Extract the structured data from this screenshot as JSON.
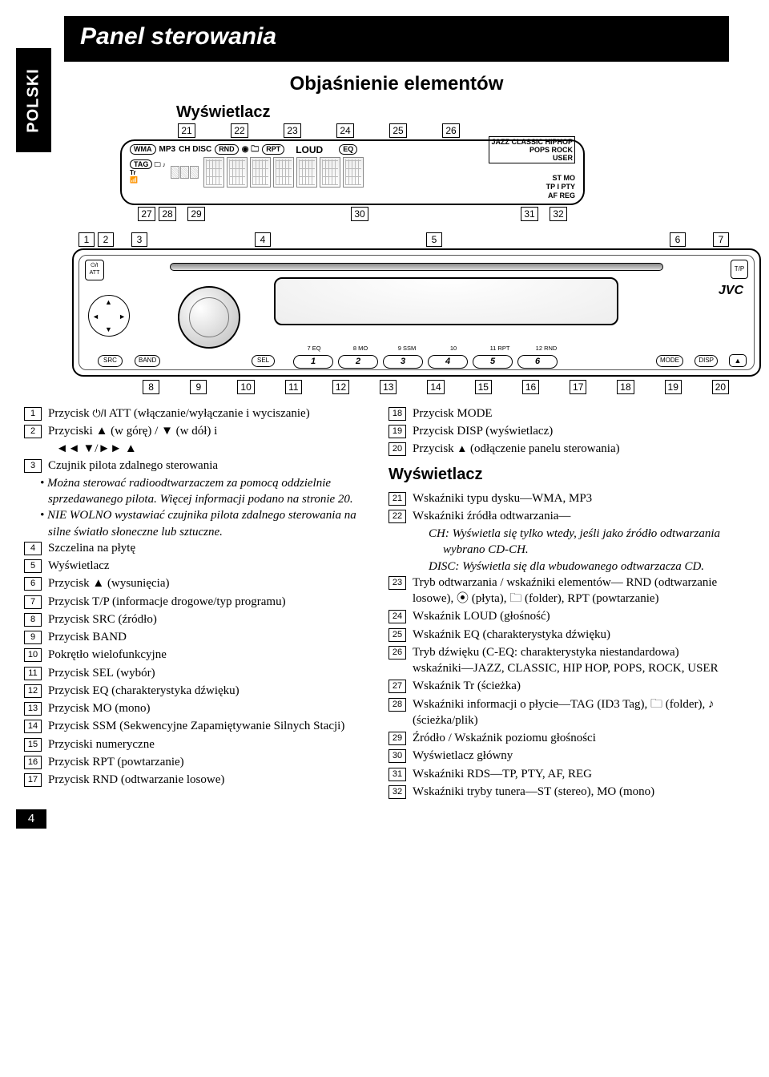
{
  "page_number": "4",
  "side_tab": "POLSKI",
  "title": "Panel sterowania",
  "subtitle": "Objaśnienie elementów",
  "display_label": "Wyświetlacz",
  "lcd": {
    "row1": [
      "WMA",
      "MP3",
      "CH DISC",
      "RND",
      "RPT"
    ],
    "loud": "LOUD",
    "eq": "EQ",
    "right_block": "JAZZ CLASSIC HIPHOP\nPOPS ROCK\nUSER",
    "tag": "TAG",
    "tr": "Tr",
    "stmo": "ST MO",
    "tp": "TP I PTY",
    "afreg": "AF REG"
  },
  "faceplate": {
    "att": "ATT",
    "tp": "T/P",
    "src": "SRC",
    "band": "BAND",
    "sel": "SEL",
    "mode": "MODE",
    "disp": "DISP",
    "jvc": "JVC",
    "num_labels": [
      "7 EQ",
      "8 MO",
      "9 SSM",
      "10",
      "11 RPT",
      "12 RND"
    ]
  },
  "top_callouts": [
    "21",
    "22",
    "23",
    "24",
    "25",
    "26"
  ],
  "bot_callouts_lcd": [
    "27",
    "28",
    "29",
    "30",
    "31",
    "32"
  ],
  "front_top": [
    "1",
    "2",
    "3",
    "4",
    "5",
    "6",
    "7"
  ],
  "front_bot": [
    "8",
    "9",
    "10",
    "11",
    "12",
    "13",
    "14",
    "15",
    "16",
    "17",
    "18",
    "19",
    "20"
  ],
  "left_col": [
    {
      "n": "1",
      "t": "Przycisk  ATT (włączanie/wyłączanie i wyciszanie)",
      "suffix_pre": true
    },
    {
      "n": "2",
      "t": "Przyciski ▲ (w górę) / ▼ (w dół) i"
    },
    {
      "sub": "◄◄ ▼/►► ▲",
      "cls": "sub"
    },
    {
      "n": "3",
      "t": "Czujnik pilota zdalnego sterowania"
    },
    {
      "bullet": "Można sterować radioodtwarzaczem za pomocą oddzielnie sprzedawanego pilota. Więcej informacji podano na stronie 20."
    },
    {
      "bullet": "NIE WOLNO wystawiać czujnika pilota zdalnego sterowania na silne światło słoneczne lub sztuczne."
    },
    {
      "n": "4",
      "t": "Szczelina na płytę"
    },
    {
      "n": "5",
      "t": "Wyświetlacz"
    },
    {
      "n": "6",
      "t": "Przycisk ▲ (wysunięcia)"
    },
    {
      "n": "7",
      "t": "Przycisk T/P (informacje drogowe/typ programu)"
    },
    {
      "n": "8",
      "t": "Przycisk SRC (źródło)"
    },
    {
      "n": "9",
      "t": "Przycisk BAND"
    },
    {
      "n": "10",
      "t": "Pokrętło wielofunkcyjne"
    },
    {
      "n": "11",
      "t": "Przycisk SEL (wybór)"
    },
    {
      "n": "12",
      "t": "Przycisk EQ (charakterystyka dźwięku)"
    },
    {
      "n": "13",
      "t": "Przycisk MO (mono)"
    },
    {
      "n": "14",
      "t": "Przycisk SSM (Sekwencyjne Zapamiętywanie Silnych Stacji)"
    },
    {
      "n": "15",
      "t": "Przyciski numeryczne"
    },
    {
      "n": "16",
      "t": "Przycisk RPT (powtarzanie)"
    },
    {
      "n": "17",
      "t": "Przycisk RND (odtwarzanie losowe)"
    }
  ],
  "right_col_top": [
    {
      "n": "18",
      "t": "Przycisk MODE"
    },
    {
      "n": "19",
      "t": "Przycisk DISP (wyświetlacz)"
    },
    {
      "n": "20",
      "t": "Przycisk  (odłączenie panelu sterowania)",
      "rel": true
    }
  ],
  "right_h3": "Wyświetlacz",
  "right_col_bot": [
    {
      "n": "21",
      "t": "Wskaźniki typu dysku—WMA, MP3"
    },
    {
      "n": "22",
      "t": "Wskaźniki źródła odtwarzania—"
    },
    {
      "sub": "CH: Wyświetla się tylko wtedy, jeśli jako źródło odtwarzania wybrano CD-CH.",
      "i": true
    },
    {
      "sub": "DISC: Wyświetla się dla wbudowanego odtwarzacza CD.",
      "i": true
    },
    {
      "n": "23",
      "t": "Tryb odtwarzania / wskaźniki elementów— RND (odtwarzanie losowe), ⦿ (płyta), 🗀 (folder), RPT (powtarzanie)"
    },
    {
      "n": "24",
      "t": "Wskaźnik LOUD (głośność)"
    },
    {
      "n": "25",
      "t": "Wskaźnik EQ (charakterystyka dźwięku)"
    },
    {
      "n": "26",
      "t": "Tryb dźwięku (C-EQ: charakterystyka niestandardowa) wskaźniki—JAZZ, CLASSIC, HIP HOP, POPS, ROCK, USER"
    },
    {
      "n": "27",
      "t": "Wskaźnik Tr (ścieżka)"
    },
    {
      "n": "28",
      "t": "Wskaźniki informacji o płycie—TAG (ID3 Tag), 🗀 (folder), ♪ (ścieżka/plik)"
    },
    {
      "n": "29",
      "t": "Źródło / Wskaźnik poziomu głośności"
    },
    {
      "n": "30",
      "t": "Wyświetlacz główny"
    },
    {
      "n": "31",
      "t": "Wskaźniki RDS—TP, PTY, AF, REG"
    },
    {
      "n": "32",
      "t": "Wskaźniki tryby tunera—ST (stereo), MO (mono)"
    }
  ]
}
